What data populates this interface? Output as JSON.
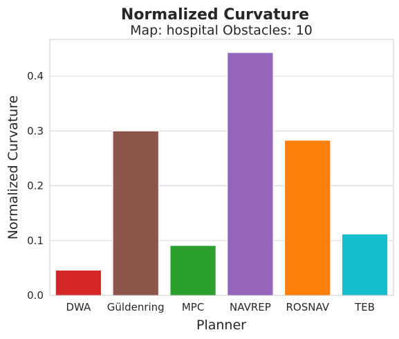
{
  "chart_data": {
    "type": "bar",
    "title": "Normalized Curvature",
    "subtitle": "Map: hospital Obstacles: 10",
    "xlabel": "Planner",
    "ylabel": "Normalized Curvature",
    "categories": [
      "DWA",
      "Güldenring",
      "MPC",
      "NAVREP",
      "ROSNAV",
      "TEB"
    ],
    "values": [
      0.046,
      0.3,
      0.091,
      0.443,
      0.283,
      0.112
    ],
    "colors": [
      "#d62728",
      "#8c564b",
      "#2ca02c",
      "#9467bd",
      "#ff7f0e",
      "#17becf"
    ],
    "ylim": [
      0,
      0.467
    ],
    "yticks": [
      0.0,
      0.1,
      0.2,
      0.3,
      0.4
    ],
    "ytick_labels": [
      "0.0",
      "0.1",
      "0.2",
      "0.3",
      "0.4"
    ],
    "grid": true,
    "legend": "none"
  }
}
